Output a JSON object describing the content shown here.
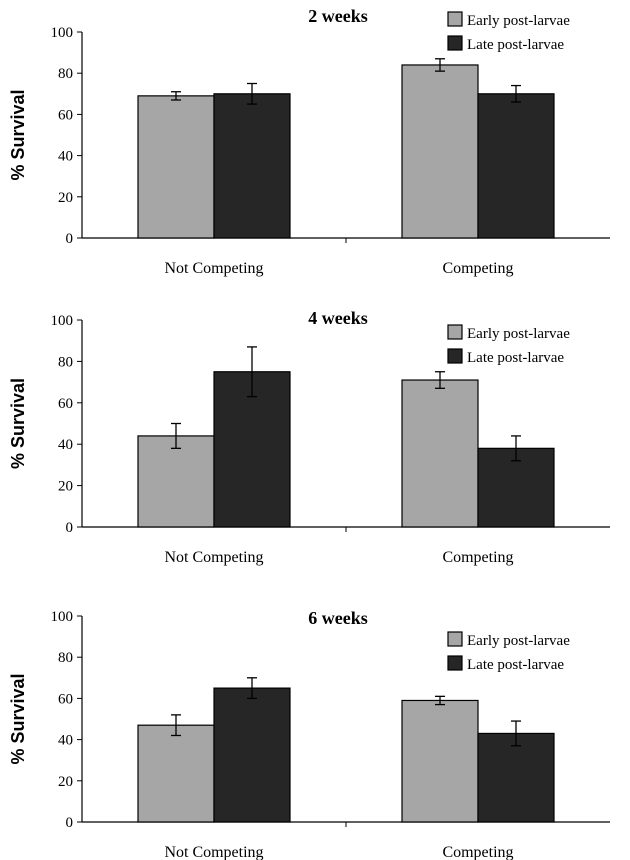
{
  "chart_data": [
    {
      "type": "bar",
      "title": "2  weeks",
      "ylabel": "% Survival",
      "xlabel": "",
      "ylim": [
        0,
        100
      ],
      "yticks": [
        0,
        20,
        40,
        60,
        80,
        100
      ],
      "categories": [
        "Not Competing",
        "Competing"
      ],
      "series": [
        {
          "name": "Early post-larvae",
          "color": "#a6a6a6",
          "values": [
            69,
            84
          ],
          "errors": [
            2,
            3
          ]
        },
        {
          "name": "Late post-larvae",
          "color": "#262626",
          "values": [
            70,
            70
          ],
          "errors": [
            5,
            4
          ]
        }
      ],
      "legend_position": "top-right",
      "grid": false
    },
    {
      "type": "bar",
      "title": "4  weeks",
      "ylabel": "% Survival",
      "xlabel": "",
      "ylim": [
        0,
        100
      ],
      "yticks": [
        0,
        20,
        40,
        60,
        80,
        100
      ],
      "categories": [
        "Not Competing",
        "Competing"
      ],
      "series": [
        {
          "name": "Early post-larvae",
          "color": "#a6a6a6",
          "values": [
            44,
            71
          ],
          "errors": [
            6,
            4
          ]
        },
        {
          "name": "Late post-larvae",
          "color": "#262626",
          "values": [
            75,
            38
          ],
          "errors": [
            12,
            6
          ]
        }
      ],
      "legend_position": "top-right",
      "grid": false
    },
    {
      "type": "bar",
      "title": "6  weeks",
      "ylabel": "% Survival",
      "xlabel": "",
      "ylim": [
        0,
        100
      ],
      "yticks": [
        0,
        20,
        40,
        60,
        80,
        100
      ],
      "categories": [
        "Not Competing",
        "Competing"
      ],
      "series": [
        {
          "name": "Early post-larvae",
          "color": "#a6a6a6",
          "values": [
            47,
            59
          ],
          "errors": [
            5,
            2
          ]
        },
        {
          "name": "Late post-larvae",
          "color": "#262626",
          "values": [
            65,
            43
          ],
          "errors": [
            5,
            6
          ]
        }
      ],
      "legend_position": "top-right",
      "grid": false
    }
  ]
}
